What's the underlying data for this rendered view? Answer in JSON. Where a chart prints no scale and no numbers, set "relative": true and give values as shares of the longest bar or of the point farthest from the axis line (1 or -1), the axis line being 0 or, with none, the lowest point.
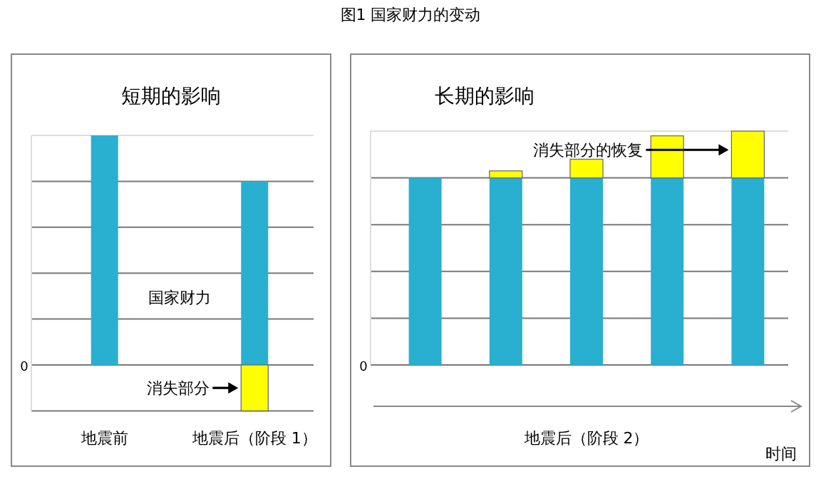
{
  "chart_data": [
    {
      "type": "bar",
      "stacked": true,
      "relative": true,
      "grid": "y",
      "title": "短期的影响",
      "categories": [
        "地震前",
        "地震后（阶段 1）"
      ],
      "series": [
        {
          "name": "国家财力",
          "color": "#29afd0",
          "values": [
            1,
            0.8
          ]
        },
        {
          "name": "消失部分",
          "color": "#ffff00",
          "values": [
            null,
            -0.2
          ]
        }
      ],
      "annotations": [
        "图1  国家财力的变动",
        "0"
      ]
    },
    {
      "type": "bar",
      "stacked": true,
      "relative": true,
      "grid": "y",
      "title": "长期的影响",
      "categories": [
        null,
        null,
        null,
        null,
        null
      ],
      "xlabel": "地震后（阶段 2）",
      "series": [
        {
          "color": "#29afd0",
          "values": [
            0.8,
            0.8,
            0.8,
            0.8,
            0.8
          ]
        },
        {
          "name": "消失部分的恢复",
          "color": "#ffff00",
          "values": [
            null,
            0.03,
            0.08,
            0.18,
            0.2
          ]
        }
      ],
      "annotations": [
        "0",
        "时间"
      ]
    }
  ]
}
